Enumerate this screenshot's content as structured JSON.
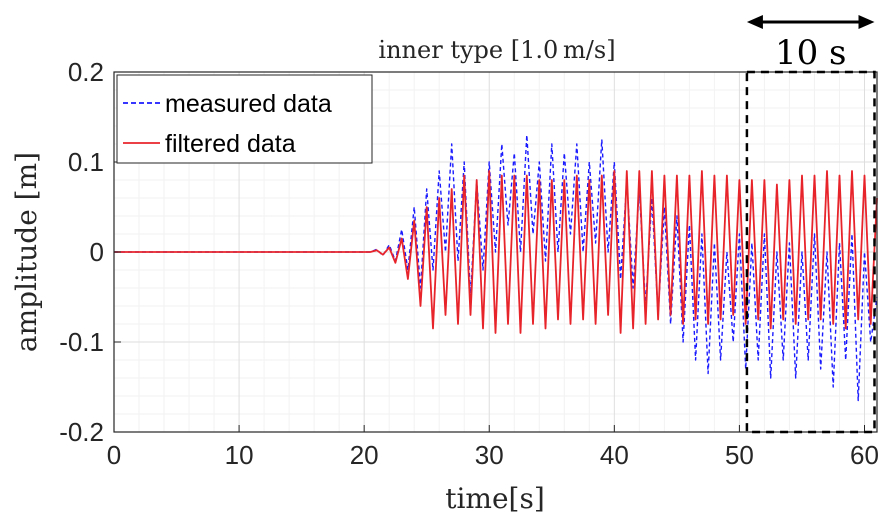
{
  "chart_data": {
    "type": "line",
    "title": "inner type [1.0 m/s]",
    "xlabel": "time[s]",
    "ylabel": "amplitude  [m]",
    "xlim": [
      0,
      61
    ],
    "ylim": [
      -0.2,
      0.2
    ],
    "xticks": [
      0,
      10,
      20,
      30,
      40,
      50,
      60
    ],
    "yticks": [
      0.2,
      0.1,
      0,
      -0.1,
      -0.2
    ],
    "ytick_labels": [
      "0.2",
      "0.1",
      "0",
      "-0.1",
      "-0.2"
    ],
    "grid": true,
    "minor_grid": true,
    "legend_position": "top-left",
    "series": [
      {
        "name": "measured data",
        "style": "dashed",
        "color": "#1a1aff",
        "x": [
          0,
          20.5,
          21.0,
          21.5,
          22.0,
          22.5,
          23.0,
          23.5,
          24.0,
          24.5,
          25.0,
          25.5,
          26.0,
          26.5,
          27.0,
          27.5,
          28.0,
          28.5,
          29.0,
          29.5,
          30.0,
          30.5,
          31.0,
          31.5,
          32.0,
          32.5,
          33.0,
          33.5,
          34.0,
          34.5,
          35.0,
          35.5,
          36.0,
          36.5,
          37.0,
          37.5,
          38.0,
          38.5,
          39.0,
          39.5,
          40.0,
          40.5,
          41.0,
          41.5,
          42.0,
          42.5,
          43.0,
          43.5,
          44.0,
          44.5,
          45.0,
          45.5,
          46.0,
          46.5,
          47.0,
          47.5,
          48.0,
          48.5,
          49.0,
          49.5,
          50.0,
          50.5,
          51.0,
          51.5,
          52.0,
          52.5,
          53.0,
          53.5,
          54.0,
          54.5,
          55.0,
          55.5,
          56.0,
          56.5,
          57.0,
          57.5,
          58.0,
          58.5,
          59.0,
          59.5,
          60.0,
          60.5,
          61.0
        ],
        "y": [
          0,
          0,
          0.003,
          -0.004,
          0.008,
          -0.01,
          0.025,
          -0.02,
          0.05,
          -0.04,
          0.07,
          -0.02,
          0.09,
          0.0,
          0.12,
          -0.01,
          0.1,
          -0.05,
          0.08,
          -0.02,
          0.1,
          0.0,
          0.12,
          0.03,
          0.11,
          0.0,
          0.13,
          0.02,
          0.1,
          -0.01,
          0.12,
          0.0,
          0.11,
          0.02,
          0.12,
          0.0,
          0.1,
          0.01,
          0.125,
          0.0,
          0.1,
          -0.03,
          0.08,
          -0.04,
          0.07,
          -0.06,
          0.06,
          -0.07,
          0.05,
          -0.08,
          0.04,
          -0.1,
          0.03,
          -0.12,
          0.02,
          -0.135,
          0.01,
          -0.12,
          0.0,
          -0.1,
          0.02,
          -0.13,
          0.01,
          -0.12,
          0.02,
          -0.14,
          0.0,
          -0.12,
          0.01,
          -0.14,
          0.0,
          -0.12,
          0.02,
          -0.13,
          0.0,
          -0.15,
          0.01,
          -0.12,
          0.02,
          -0.165,
          0.0,
          -0.1,
          -0.05
        ]
      },
      {
        "name": "filtered data",
        "style": "solid",
        "color": "#e8242b",
        "x": [
          0,
          20.5,
          21.0,
          21.5,
          22.0,
          22.5,
          23.0,
          23.5,
          24.0,
          24.5,
          25.0,
          25.5,
          26.0,
          26.5,
          27.0,
          27.5,
          28.0,
          28.5,
          29.0,
          29.5,
          30.0,
          30.5,
          31.0,
          31.5,
          32.0,
          32.5,
          33.0,
          33.5,
          34.0,
          34.5,
          35.0,
          35.5,
          36.0,
          36.5,
          37.0,
          37.5,
          38.0,
          38.5,
          39.0,
          39.5,
          40.0,
          40.5,
          41.0,
          41.5,
          42.0,
          42.5,
          43.0,
          43.5,
          44.0,
          44.5,
          45.0,
          45.5,
          46.0,
          46.5,
          47.0,
          47.5,
          48.0,
          48.5,
          49.0,
          49.5,
          50.0,
          50.5,
          51.0,
          51.5,
          52.0,
          52.5,
          53.0,
          53.5,
          54.0,
          54.5,
          55.0,
          55.5,
          56.0,
          56.5,
          57.0,
          57.5,
          58.0,
          58.5,
          59.0,
          59.5,
          60.0,
          60.5,
          61.0
        ],
        "y": [
          0,
          0,
          0.002,
          -0.003,
          0.005,
          -0.012,
          0.015,
          -0.03,
          0.035,
          -0.06,
          0.05,
          -0.085,
          0.06,
          -0.07,
          0.07,
          -0.08,
          0.085,
          -0.07,
          0.08,
          -0.085,
          0.09,
          -0.09,
          0.085,
          -0.08,
          0.085,
          -0.09,
          0.085,
          -0.08,
          0.08,
          -0.085,
          0.08,
          -0.075,
          0.08,
          -0.08,
          0.085,
          -0.075,
          0.08,
          -0.08,
          0.085,
          -0.07,
          0.09,
          -0.09,
          0.09,
          -0.085,
          0.09,
          -0.08,
          0.09,
          -0.075,
          0.085,
          -0.07,
          0.085,
          -0.08,
          0.085,
          -0.075,
          0.09,
          -0.08,
          0.085,
          -0.075,
          0.085,
          -0.07,
          0.08,
          -0.08,
          0.08,
          -0.075,
          0.08,
          -0.085,
          0.075,
          -0.075,
          0.08,
          -0.08,
          0.085,
          -0.075,
          0.085,
          -0.075,
          0.09,
          -0.08,
          0.085,
          -0.085,
          0.09,
          -0.075,
          0.085,
          -0.08,
          0.06
        ]
      }
    ],
    "annotations": [
      {
        "type": "dashed_box",
        "x_range": [
          50.6,
          60.8
        ],
        "y_range": [
          -0.2,
          0.2
        ]
      },
      {
        "type": "double_arrow",
        "label": "10 s",
        "x_range": [
          50.6,
          60.8
        ]
      }
    ]
  }
}
